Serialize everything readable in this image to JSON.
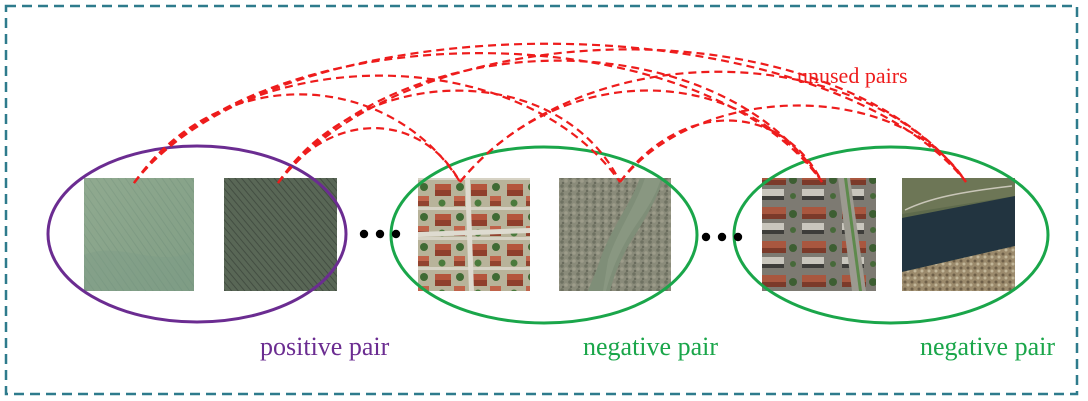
{
  "labels": {
    "unused_pairs": "unused pairs",
    "positive_pair": "positive pair",
    "negative_pair_1": "negative pair",
    "negative_pair_2": "negative pair"
  },
  "colors": {
    "frame": "#2e7b8c",
    "positive": "#6b2c91",
    "negative": "#1aa64a",
    "arcs": "#ee1c1c"
  }
}
